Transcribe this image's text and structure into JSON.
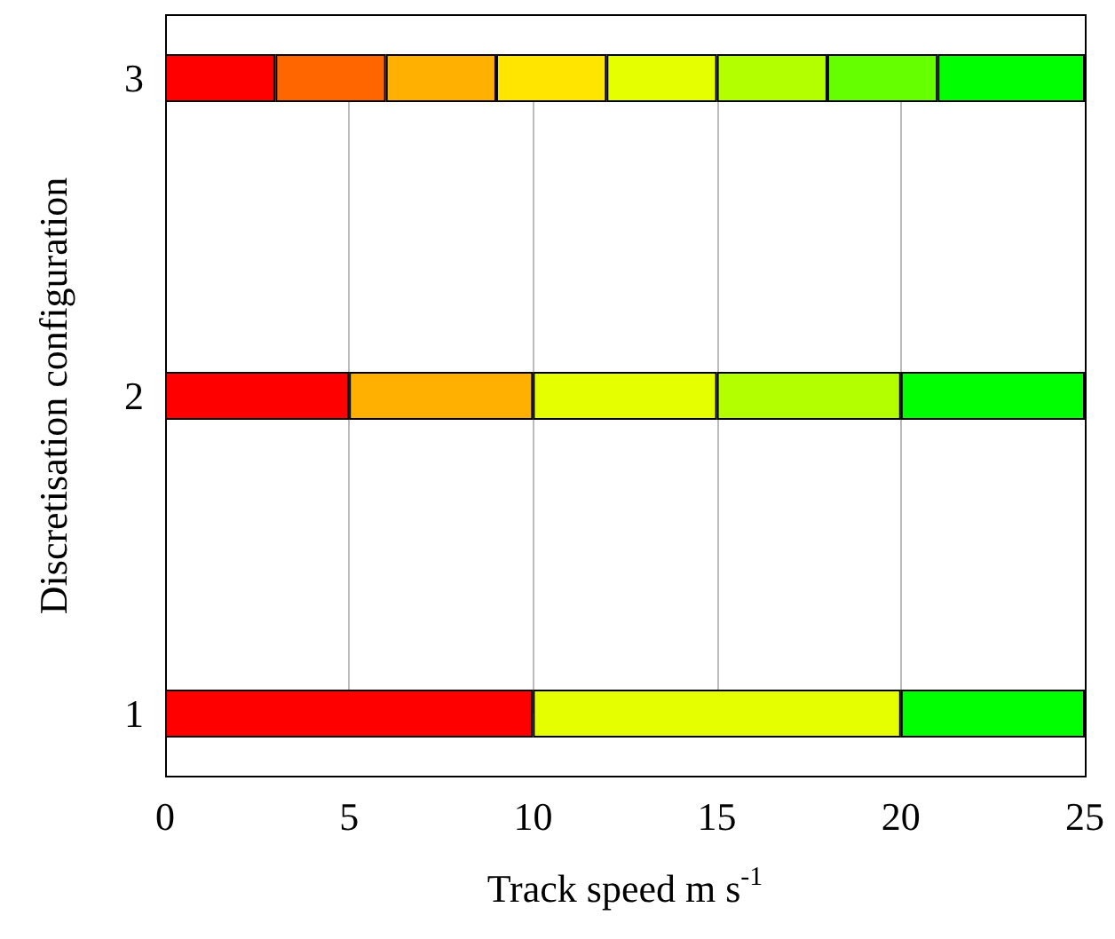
{
  "chart_data": {
    "type": "bar",
    "orientation": "horizontal",
    "stacked": true,
    "xlabel": "Track speed m s$^{-1}$",
    "ylabel": "Discretisation configuration",
    "categories": [
      "3",
      "2",
      "1"
    ],
    "series": [
      {
        "colors": [
          "#ff0000",
          "#ff0000",
          "#ff0000"
        ],
        "values": [
          3,
          5,
          10
        ]
      },
      {
        "colors": [
          "#ff6600",
          "#ffb000",
          "#e5ff00"
        ],
        "values": [
          3,
          5,
          10
        ]
      },
      {
        "colors": [
          "#ffb000",
          "#e5ff00",
          "#00ff00"
        ],
        "values": [
          3,
          5,
          5
        ]
      },
      {
        "colors": [
          "#ffe500",
          "#b3ff00",
          null
        ],
        "values": [
          3,
          5,
          null
        ]
      },
      {
        "colors": [
          "#e5ff00",
          "#00ff00",
          null
        ],
        "values": [
          3,
          5,
          null
        ]
      },
      {
        "colors": [
          "#b3ff00",
          null,
          null
        ],
        "values": [
          3,
          null,
          null
        ]
      },
      {
        "colors": [
          "#66ff00",
          null,
          null
        ],
        "values": [
          3,
          null,
          null
        ]
      },
      {
        "colors": [
          "#00ff00",
          null,
          null
        ],
        "values": [
          4,
          null,
          null
        ]
      }
    ],
    "xlim": [
      0,
      25
    ],
    "xticks": [
      0,
      5,
      10,
      15,
      20,
      25
    ],
    "grid": "x"
  }
}
